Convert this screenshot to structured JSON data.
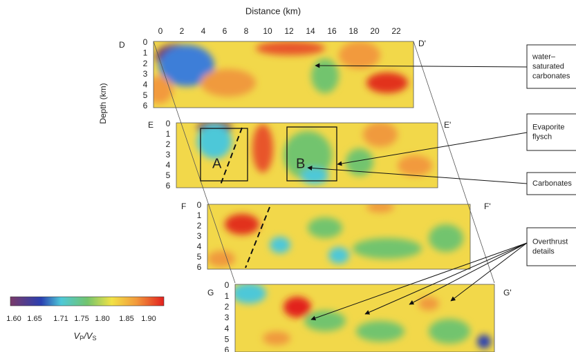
{
  "axis": {
    "title": "Distance (km)",
    "distance_ticks": [
      "0",
      "2",
      "4",
      "6",
      "8",
      "10",
      "12",
      "14",
      "16",
      "18",
      "20",
      "22"
    ],
    "depth_title": "Depth (km)"
  },
  "panels": [
    {
      "left_label": "D",
      "right_label": "D'",
      "depth_ticks": [
        "0",
        "1",
        "2",
        "3",
        "4",
        "5",
        "6"
      ]
    },
    {
      "left_label": "E",
      "right_label": "E'",
      "depth_ticks": [
        "0",
        "1",
        "2",
        "3",
        "4",
        "5",
        "6"
      ]
    },
    {
      "left_label": "F",
      "right_label": "F'",
      "depth_ticks": [
        "0",
        "1",
        "2",
        "3",
        "4",
        "5",
        "6"
      ]
    },
    {
      "left_label": "G",
      "right_label": "G'",
      "depth_ticks": [
        "0",
        "1",
        "2",
        "3",
        "4",
        "5",
        "6"
      ]
    }
  ],
  "boxes": [
    "A",
    "B"
  ],
  "annotations": [
    {
      "lines": [
        "water–",
        "saturated",
        "carbonates"
      ]
    },
    {
      "lines": [
        "Evaporite",
        "flysch"
      ]
    },
    {
      "lines": [
        "Carbonates"
      ]
    },
    {
      "lines": [
        "Overthrust",
        "details"
      ]
    }
  ],
  "colorbar": {
    "ticks": [
      "1.60",
      "1.65",
      "1.71",
      "1.75",
      "1.80",
      "1.85",
      "1.90"
    ],
    "label": [
      "V",
      "P",
      "/V",
      "S"
    ]
  }
}
